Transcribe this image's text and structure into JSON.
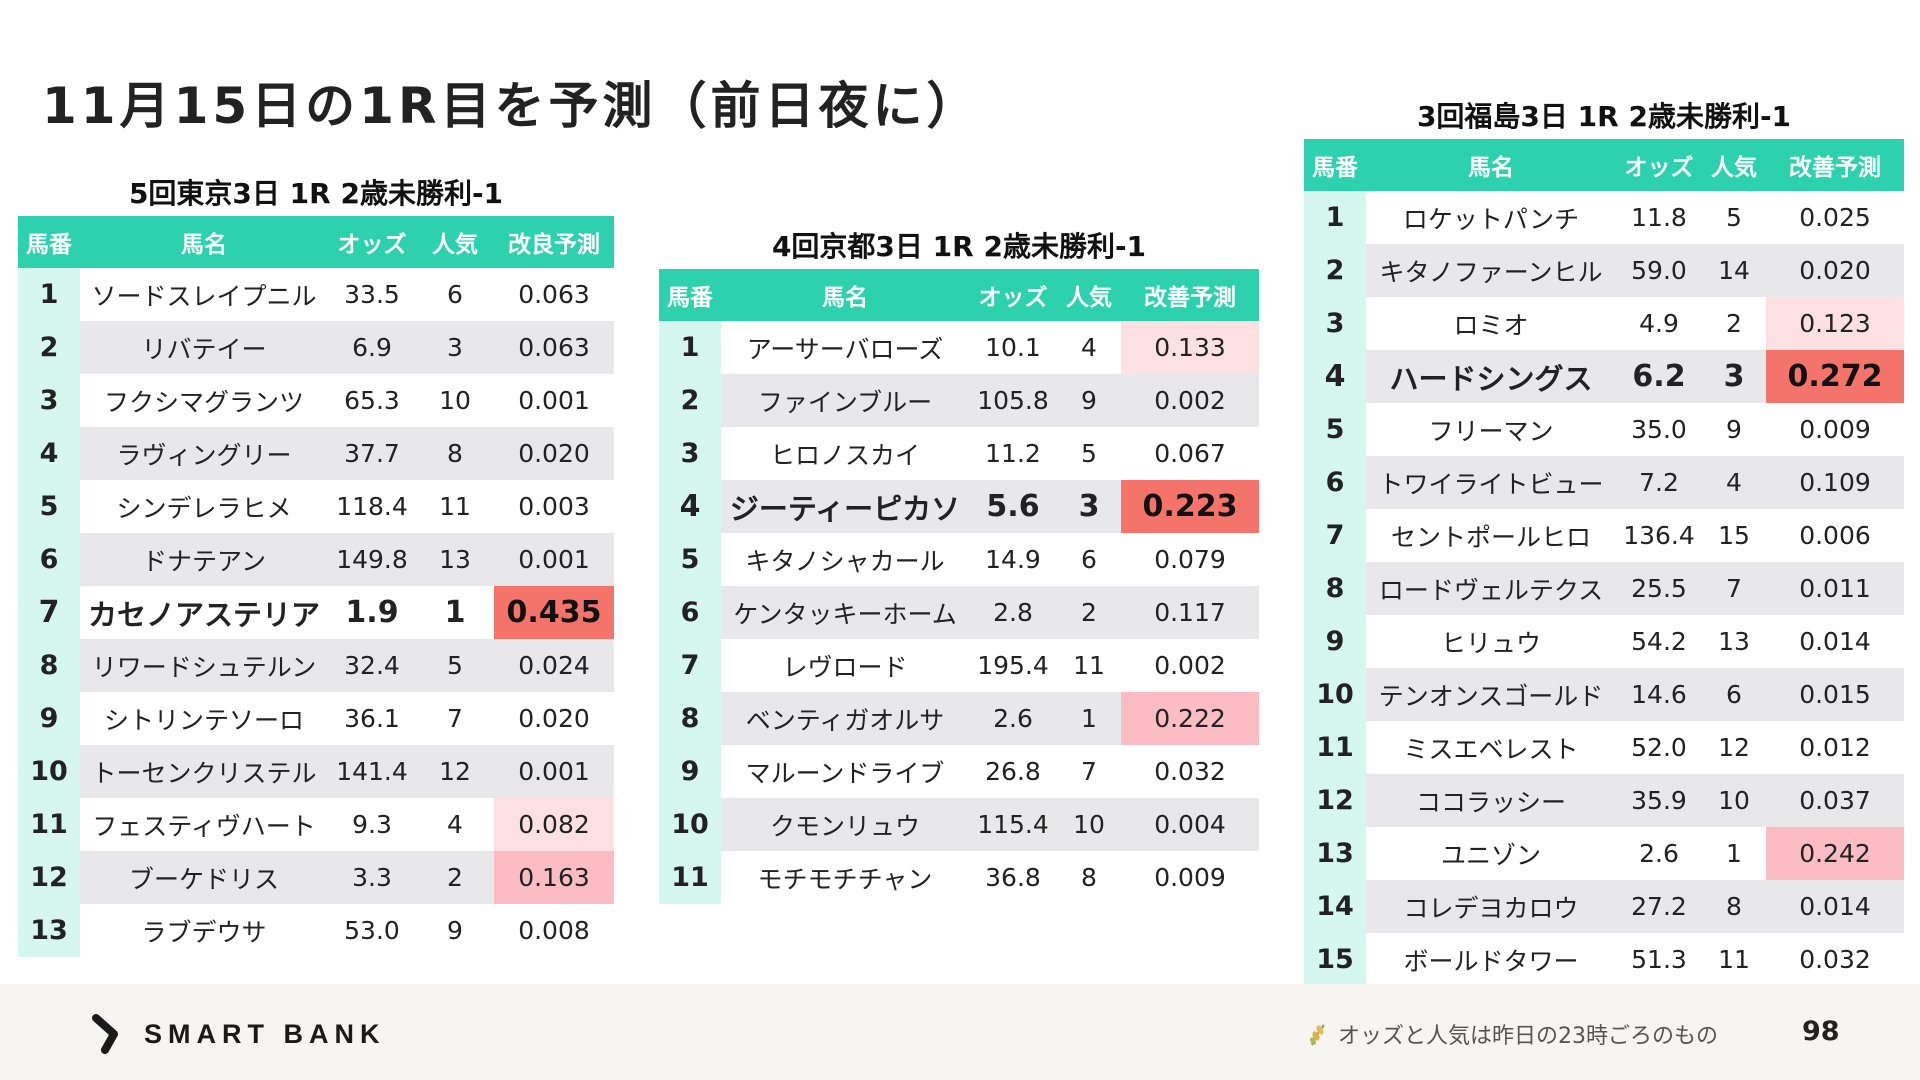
{
  "page_title": "11月15日の1R目を予測（前日夜に）",
  "races": [
    {
      "title": "5回東京3日 1R 2歳未勝利-1",
      "headers": [
        "馬番",
        "馬名",
        "オッズ",
        "人気",
        "改良予測"
      ],
      "rows": [
        {
          "num": "1",
          "name": "ソードスレイプニル",
          "odds": "33.5",
          "pop": "6",
          "pred": "0.063",
          "hl": ""
        },
        {
          "num": "2",
          "name": "リバテイー",
          "odds": "6.9",
          "pop": "3",
          "pred": "0.063",
          "hl": ""
        },
        {
          "num": "3",
          "name": "フクシマグランツ",
          "odds": "65.3",
          "pop": "10",
          "pred": "0.001",
          "hl": ""
        },
        {
          "num": "4",
          "name": "ラヴィングリー",
          "odds": "37.7",
          "pop": "8",
          "pred": "0.020",
          "hl": ""
        },
        {
          "num": "5",
          "name": "シンデレラヒメ",
          "odds": "118.4",
          "pop": "11",
          "pred": "0.003",
          "hl": ""
        },
        {
          "num": "6",
          "name": "ドナテアン",
          "odds": "149.8",
          "pop": "13",
          "pred": "0.001",
          "hl": ""
        },
        {
          "num": "7",
          "name": "カセノアステリア",
          "odds": "1.9",
          "pop": "1",
          "pred": "0.435",
          "hl": "strong",
          "top": true
        },
        {
          "num": "8",
          "name": "リワードシュテルン",
          "odds": "32.4",
          "pop": "5",
          "pred": "0.024",
          "hl": ""
        },
        {
          "num": "9",
          "name": "シトリンテソーロ",
          "odds": "36.1",
          "pop": "7",
          "pred": "0.020",
          "hl": ""
        },
        {
          "num": "10",
          "name": "トーセンクリステル",
          "odds": "141.4",
          "pop": "12",
          "pred": "0.001",
          "hl": ""
        },
        {
          "num": "11",
          "name": "フェスティヴハート",
          "odds": "9.3",
          "pop": "4",
          "pred": "0.082",
          "hl": "light"
        },
        {
          "num": "12",
          "name": "ブーケドリス",
          "odds": "3.3",
          "pop": "2",
          "pred": "0.163",
          "hl": "mid"
        },
        {
          "num": "13",
          "name": "ラブデウサ",
          "odds": "53.0",
          "pop": "9",
          "pred": "0.008",
          "hl": ""
        }
      ]
    },
    {
      "title": "4回京都3日 1R 2歳未勝利-1",
      "headers": [
        "馬番",
        "馬名",
        "オッズ",
        "人気",
        "改善予測"
      ],
      "rows": [
        {
          "num": "1",
          "name": "アーサーバローズ",
          "odds": "10.1",
          "pop": "4",
          "pred": "0.133",
          "hl": "light"
        },
        {
          "num": "2",
          "name": "ファインブルー",
          "odds": "105.8",
          "pop": "9",
          "pred": "0.002",
          "hl": ""
        },
        {
          "num": "3",
          "name": "ヒロノスカイ",
          "odds": "11.2",
          "pop": "5",
          "pred": "0.067",
          "hl": ""
        },
        {
          "num": "4",
          "name": "ジーティーピカソ",
          "odds": "5.6",
          "pop": "3",
          "pred": "0.223",
          "hl": "strong",
          "top": true
        },
        {
          "num": "5",
          "name": "キタノシャカール",
          "odds": "14.9",
          "pop": "6",
          "pred": "0.079",
          "hl": ""
        },
        {
          "num": "6",
          "name": "ケンタッキーホーム",
          "odds": "2.8",
          "pop": "2",
          "pred": "0.117",
          "hl": ""
        },
        {
          "num": "7",
          "name": "レヴロード",
          "odds": "195.4",
          "pop": "11",
          "pred": "0.002",
          "hl": ""
        },
        {
          "num": "8",
          "name": "ベンティガオルサ",
          "odds": "2.6",
          "pop": "1",
          "pred": "0.222",
          "hl": "mid"
        },
        {
          "num": "9",
          "name": "マルーンドライブ",
          "odds": "26.8",
          "pop": "7",
          "pred": "0.032",
          "hl": ""
        },
        {
          "num": "10",
          "name": "クモンリュウ",
          "odds": "115.4",
          "pop": "10",
          "pred": "0.004",
          "hl": ""
        },
        {
          "num": "11",
          "name": "モチモチチャン",
          "odds": "36.8",
          "pop": "8",
          "pred": "0.009",
          "hl": ""
        }
      ]
    },
    {
      "title": "3回福島3日 1R 2歳未勝利-1",
      "headers": [
        "馬番",
        "馬名",
        "オッズ",
        "人気",
        "改善予測"
      ],
      "rows": [
        {
          "num": "1",
          "name": "ロケットパンチ",
          "odds": "11.8",
          "pop": "5",
          "pred": "0.025",
          "hl": ""
        },
        {
          "num": "2",
          "name": "キタノファーンヒル",
          "odds": "59.0",
          "pop": "14",
          "pred": "0.020",
          "hl": ""
        },
        {
          "num": "3",
          "name": "ロミオ",
          "odds": "4.9",
          "pop": "2",
          "pred": "0.123",
          "hl": "light"
        },
        {
          "num": "4",
          "name": "ハードシングス",
          "odds": "6.2",
          "pop": "3",
          "pred": "0.272",
          "hl": "strong",
          "top": true
        },
        {
          "num": "5",
          "name": "フリーマン",
          "odds": "35.0",
          "pop": "9",
          "pred": "0.009",
          "hl": ""
        },
        {
          "num": "6",
          "name": "トワイライトビュー",
          "odds": "7.2",
          "pop": "4",
          "pred": "0.109",
          "hl": ""
        },
        {
          "num": "7",
          "name": "セントポールヒロ",
          "odds": "136.4",
          "pop": "15",
          "pred": "0.006",
          "hl": ""
        },
        {
          "num": "8",
          "name": "ロードヴェルテクス",
          "odds": "25.5",
          "pop": "7",
          "pred": "0.011",
          "hl": ""
        },
        {
          "num": "9",
          "name": "ヒリュウ",
          "odds": "54.2",
          "pop": "13",
          "pred": "0.014",
          "hl": ""
        },
        {
          "num": "10",
          "name": "テンオンスゴールド",
          "odds": "14.6",
          "pop": "6",
          "pred": "0.015",
          "hl": ""
        },
        {
          "num": "11",
          "name": "ミスエベレスト",
          "odds": "52.0",
          "pop": "12",
          "pred": "0.012",
          "hl": ""
        },
        {
          "num": "12",
          "name": "ココラッシー",
          "odds": "35.9",
          "pop": "10",
          "pred": "0.037",
          "hl": ""
        },
        {
          "num": "13",
          "name": "ユニゾン",
          "odds": "2.6",
          "pop": "1",
          "pred": "0.242",
          "hl": "mid"
        },
        {
          "num": "14",
          "name": "コレデヨカロウ",
          "odds": "27.2",
          "pop": "8",
          "pred": "0.014",
          "hl": ""
        },
        {
          "num": "15",
          "name": "ボールドタワー",
          "odds": "51.3",
          "pop": "11",
          "pred": "0.032",
          "hl": ""
        }
      ]
    }
  ],
  "footer": {
    "logo_text": "SMART BANK",
    "note": "オッズと人気は昨日の23時ごろのもの",
    "page_number": "98"
  },
  "colors": {
    "header_bg": "#2dd1ad",
    "num_col_bg": "#d6f7ef",
    "highlight_light": "#fde0e2",
    "highlight_mid": "#fbbcc3",
    "highlight_strong": "#f4736a"
  }
}
